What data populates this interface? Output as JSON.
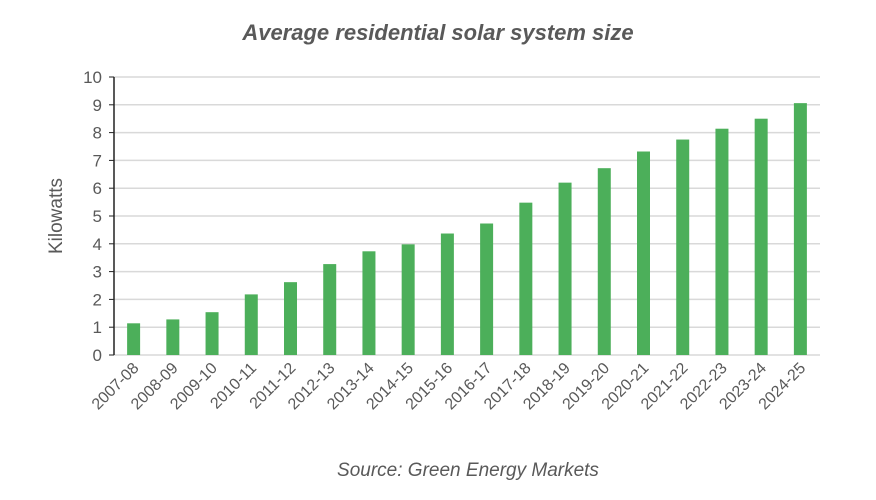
{
  "chart_data": {
    "type": "bar",
    "title": "Average residential solar system size",
    "xlabel": "",
    "ylabel": "Kilowatts",
    "ylim": [
      0,
      10
    ],
    "yticks": [
      0,
      1,
      2,
      3,
      4,
      5,
      6,
      7,
      8,
      9,
      10
    ],
    "grid": true,
    "categories": [
      "2007-08",
      "2008-09",
      "2009-10",
      "2010-11",
      "2011-12",
      "2012-13",
      "2013-14",
      "2014-15",
      "2015-16",
      "2016-17",
      "2017-18",
      "2018-19",
      "2019-20",
      "2020-21",
      "2021-22",
      "2022-23",
      "2023-24",
      "2024-25"
    ],
    "values": [
      1.14,
      1.28,
      1.54,
      2.18,
      2.62,
      3.27,
      3.73,
      3.98,
      4.37,
      4.73,
      5.48,
      6.2,
      6.72,
      7.32,
      7.75,
      8.14,
      8.5,
      9.06
    ],
    "bar_color": "#4CAF5A",
    "annotation": "Source: Green Energy Markets"
  }
}
